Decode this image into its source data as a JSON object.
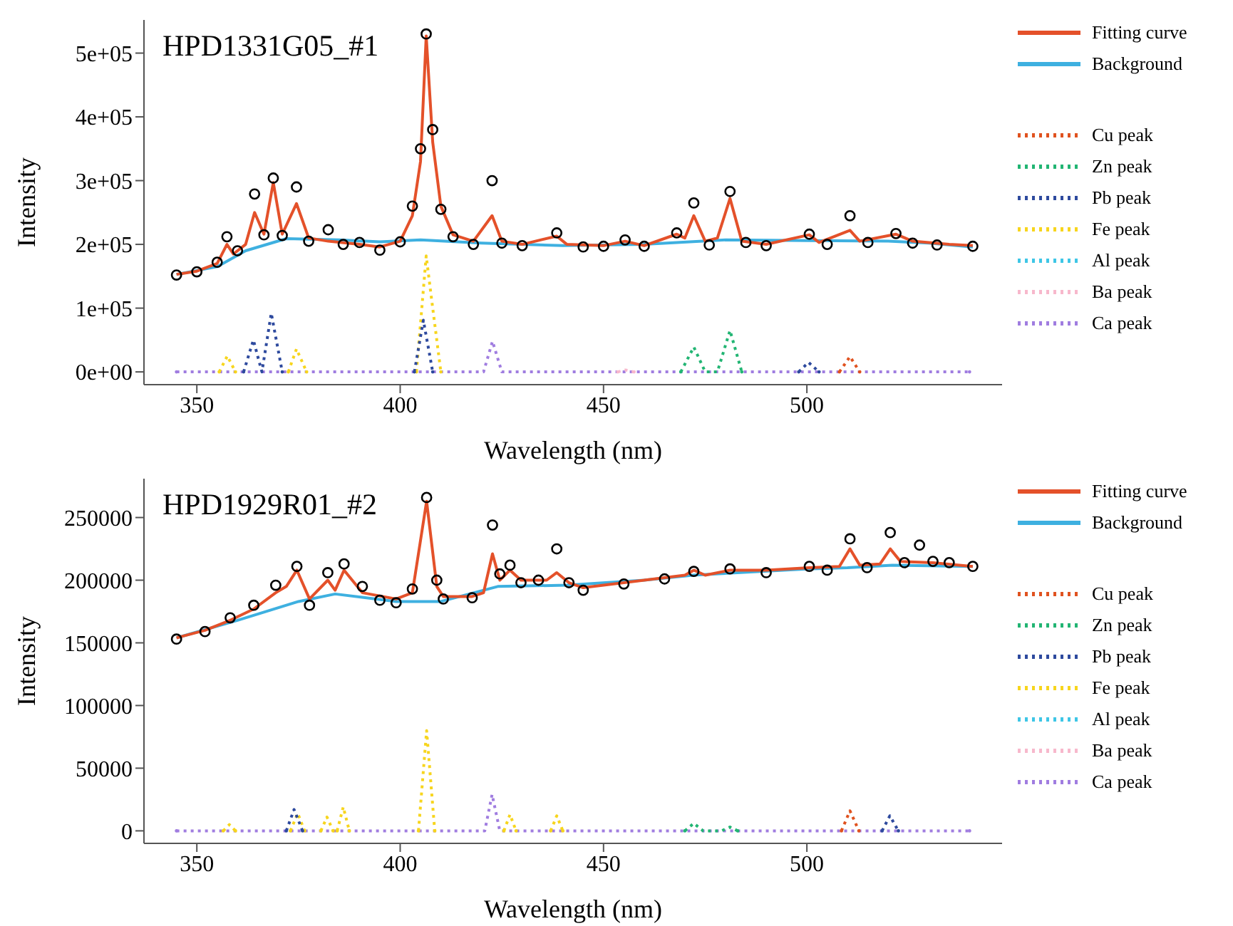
{
  "chart_data": [
    {
      "type": "line",
      "title": "HPD1331G05_#1",
      "xlabel": "Wavelength (nm)",
      "ylabel": "Intensity",
      "xlim": [
        337,
        548
      ],
      "xticks": [
        350,
        400,
        450,
        500
      ],
      "ylim": [
        -20000,
        552000
      ],
      "yticks": [
        {
          "value": 0,
          "label": "0e+00"
        },
        {
          "value": 100000,
          "label": "1e+05"
        },
        {
          "value": 200000,
          "label": "2e+05"
        },
        {
          "value": 300000,
          "label": "3e+05"
        },
        {
          "value": 400000,
          "label": "4e+05"
        },
        {
          "value": 500000,
          "label": "5e+05"
        }
      ],
      "grid": false,
      "legend": "right",
      "series": [
        {
          "type": "scatter",
          "marker": "circle",
          "color": "#000000",
          "x": [
            345,
            350,
            355,
            357.4,
            360,
            364.2,
            366.5,
            368.8,
            371,
            374.5,
            377.5,
            382.3,
            386,
            390,
            395,
            400,
            403,
            405,
            406.4,
            408,
            410,
            413,
            418,
            422.6,
            425,
            430,
            438.5,
            445,
            450,
            455.3,
            460,
            468,
            472.2,
            476,
            481.1,
            485,
            490,
            500.6,
            505,
            510.6,
            515,
            521.9,
            526,
            532,
            540.8
          ],
          "values": [
            152000,
            157000,
            172000,
            212000,
            190000,
            279000,
            215000,
            304000,
            214000,
            290000,
            205000,
            223000,
            200000,
            203000,
            191000,
            204000,
            260000,
            350000,
            530000,
            380000,
            255000,
            212000,
            200000,
            300000,
            202000,
            198000,
            218000,
            196000,
            197000,
            207000,
            197000,
            218000,
            265000,
            199000,
            283000,
            203000,
            198000,
            216000,
            200000,
            245000,
            203000,
            217000,
            202000,
            199000,
            197000
          ]
        },
        {
          "name": "Fitting curve",
          "color": "#e4512a",
          "line_style": "solid",
          "x": [
            345,
            350,
            355,
            357.4,
            359,
            362,
            364.2,
            366.5,
            368.8,
            371,
            374.5,
            377.5,
            382.3,
            390,
            395,
            400,
            403,
            405,
            406.4,
            408,
            410,
            413,
            418,
            422.6,
            425,
            430,
            438.5,
            441,
            450,
            455.3,
            460,
            468,
            470,
            472.2,
            475,
            478,
            481.1,
            484,
            490,
            500.6,
            503,
            510.6,
            513,
            521.9,
            526,
            535,
            540.8
          ],
          "values": [
            153000,
            158000,
            170000,
            200000,
            185000,
            200000,
            250000,
            216000,
            297000,
            216000,
            264000,
            210000,
            205000,
            200000,
            196000,
            205000,
            245000,
            330000,
            527000,
            360000,
            260000,
            215000,
            205000,
            245000,
            205000,
            200000,
            213000,
            200000,
            198000,
            205000,
            198000,
            216000,
            210000,
            245000,
            205000,
            210000,
            272000,
            205000,
            200000,
            215000,
            203000,
            222000,
            205000,
            216000,
            205000,
            200000,
            198000
          ]
        },
        {
          "name": "Background",
          "color": "#3eb0e0",
          "line_style": "solid",
          "x": [
            345,
            355,
            362,
            372,
            385,
            395,
            405,
            420,
            440,
            460,
            480,
            500,
            520,
            530,
            540.8
          ],
          "values": [
            153000,
            165000,
            190000,
            209000,
            207000,
            204000,
            207000,
            202000,
            198000,
            200000,
            207000,
            206000,
            205000,
            202000,
            196000
          ]
        },
        {
          "name": "Cu peak",
          "color": "#e0521f",
          "line_style": "dotted",
          "x": [
            508,
            510.6,
            513
          ],
          "values": [
            0,
            24000,
            0
          ]
        },
        {
          "name": "Zn peak",
          "color": "#22b573",
          "line_style": "dotted",
          "x": [
            469,
            472.2,
            475,
            478,
            481.1,
            484
          ],
          "values": [
            0,
            39000,
            0,
            0,
            65000,
            0
          ]
        },
        {
          "name": "Pb peak",
          "color": "#2e4a9e",
          "line_style": "dotted",
          "x": [
            361.5,
            363.9,
            366,
            368.3,
            371,
            387,
            403.5,
            405.7,
            408,
            450,
            498,
            500.4,
            503
          ],
          "values": [
            0,
            50000,
            0,
            92000,
            0,
            null,
            0,
            81000,
            0,
            null,
            0,
            15000,
            0
          ]
        },
        {
          "name": "Fe peak",
          "color": "#f7d51d",
          "line_style": "dotted",
          "x": [
            355.5,
            357.5,
            359.5,
            366,
            372.5,
            374.5,
            377,
            390,
            404,
            406.4,
            407.6,
            410
          ],
          "values": [
            0,
            25000,
            0,
            null,
            0,
            36000,
            0,
            null,
            0,
            182000,
            120000,
            0
          ]
        },
        {
          "name": "Al peak",
          "color": "#3ec6e6",
          "line_style": "dotted"
        },
        {
          "name": "Ba peak",
          "color": "#f7b8cc",
          "line_style": "dotted",
          "x": [
            453.5,
            455.4,
            457.5
          ],
          "values": [
            0,
            3000,
            0
          ]
        },
        {
          "name": "Ca peak",
          "color": "#a07de0",
          "line_style": "dotted",
          "x": [
            345,
            420.5,
            422.7,
            425,
            540
          ],
          "values": [
            0,
            0,
            48000,
            0,
            0
          ]
        }
      ]
    },
    {
      "type": "line",
      "title": "HPD1929R01_#2",
      "xlabel": "Wavelength (nm)",
      "ylabel": "Intensity",
      "xlim": [
        337,
        548
      ],
      "xticks": [
        350,
        400,
        450,
        500
      ],
      "ylim": [
        -10000,
        281000
      ],
      "yticks": [
        0,
        50000,
        100000,
        150000,
        200000,
        250000
      ],
      "grid": false,
      "legend": "right",
      "series": [
        {
          "type": "scatter",
          "marker": "circle",
          "color": "#000000",
          "x": [
            345,
            352,
            358.2,
            364,
            369.4,
            374.6,
            377.7,
            382.2,
            386.2,
            390.7,
            395,
            399,
            403,
            406.5,
            409,
            410.6,
            417.7,
            422.7,
            424.5,
            427,
            429.7,
            434,
            438.5,
            441.5,
            445,
            455,
            465,
            472.2,
            481.1,
            490,
            500.6,
            505,
            510.6,
            514.8,
            520.5,
            524,
            527.7,
            531,
            535,
            540.8
          ],
          "values": [
            153000,
            159000,
            170000,
            180000,
            196000,
            211000,
            180000,
            206000,
            213000,
            195000,
            184000,
            182000,
            193000,
            266000,
            200000,
            185000,
            186000,
            244000,
            205000,
            212000,
            198000,
            200000,
            225000,
            198000,
            192000,
            197000,
            201000,
            207000,
            209000,
            206000,
            211000,
            208000,
            233000,
            210000,
            238000,
            214000,
            228000,
            215000,
            214000,
            211000
          ]
        },
        {
          "name": "Fitting curve",
          "color": "#e4512a",
          "line_style": "solid",
          "x": [
            345,
            352,
            358.2,
            364,
            369.4,
            372,
            374.6,
            377.7,
            382.2,
            384,
            386.2,
            390.7,
            399,
            403,
            406.5,
            409,
            410.6,
            417.7,
            420.5,
            422.7,
            424.5,
            427,
            429.7,
            436,
            438.5,
            441.5,
            445,
            460,
            470,
            472.2,
            475,
            481.1,
            490,
            500.6,
            508,
            510.6,
            513,
            518,
            520.5,
            523,
            531,
            540.8
          ],
          "values": [
            154000,
            160000,
            168000,
            177000,
            190000,
            195000,
            208000,
            185000,
            200000,
            192000,
            208000,
            190000,
            185000,
            190000,
            263000,
            195000,
            187000,
            187000,
            190000,
            221000,
            200000,
            208000,
            200000,
            200000,
            206000,
            198000,
            194000,
            200000,
            204000,
            208000,
            204000,
            208000,
            208000,
            210000,
            211000,
            225000,
            212000,
            213000,
            225000,
            215000,
            214000,
            211000
          ]
        },
        {
          "name": "Background",
          "color": "#3eb0e0",
          "line_style": "solid",
          "x": [
            345,
            360,
            375,
            384,
            399,
            410,
            424,
            441,
            460,
            472,
            500,
            510,
            521,
            540.8
          ],
          "values": [
            154000,
            168000,
            183000,
            189000,
            183000,
            183000,
            195000,
            196000,
            200000,
            204000,
            209000,
            210000,
            212000,
            211000
          ]
        },
        {
          "name": "Cu peak",
          "color": "#e0521f",
          "line_style": "dotted",
          "x": [
            508.5,
            510.6,
            512.8
          ],
          "values": [
            0,
            16000,
            0
          ]
        },
        {
          "name": "Zn peak",
          "color": "#22b573",
          "line_style": "dotted",
          "x": [
            470,
            472.2,
            474.5,
            479,
            481.1,
            483
          ],
          "values": [
            0,
            6000,
            0,
            0,
            3000,
            0
          ]
        },
        {
          "name": "Pb peak",
          "color": "#2e4a9e",
          "line_style": "dotted",
          "x": [
            372,
            373.9,
            376,
            450,
            518.5,
            520.4,
            522.5
          ],
          "values": [
            0,
            17000,
            0,
            null,
            0,
            12000,
            0
          ]
        },
        {
          "name": "Fe peak",
          "color": "#f7d51d",
          "line_style": "dotted",
          "x": [
            356.5,
            358,
            359.5,
            366,
            373,
            374.8,
            376.5,
            378,
            380.5,
            382,
            383.5,
            384,
            384.5,
            386,
            387.5,
            395,
            404.5,
            406.5,
            408.5,
            415,
            425.5,
            427,
            428.5,
            433,
            437,
            438.5,
            440
          ],
          "values": [
            0,
            5000,
            0,
            null,
            0,
            14000,
            0,
            null,
            0,
            11000,
            0,
            null,
            0,
            19000,
            0,
            null,
            0,
            80000,
            0,
            null,
            0,
            13000,
            0,
            null,
            0,
            12000,
            0
          ]
        },
        {
          "name": "Al peak",
          "color": "#3ec6e6",
          "line_style": "dotted"
        },
        {
          "name": "Ba peak",
          "color": "#f7b8cc",
          "line_style": "dotted"
        },
        {
          "name": "Ca peak",
          "color": "#a07de0",
          "line_style": "dotted",
          "x": [
            345,
            420.8,
            422.6,
            424.5,
            540
          ],
          "values": [
            0,
            0,
            29000,
            0,
            0
          ]
        }
      ]
    }
  ]
}
